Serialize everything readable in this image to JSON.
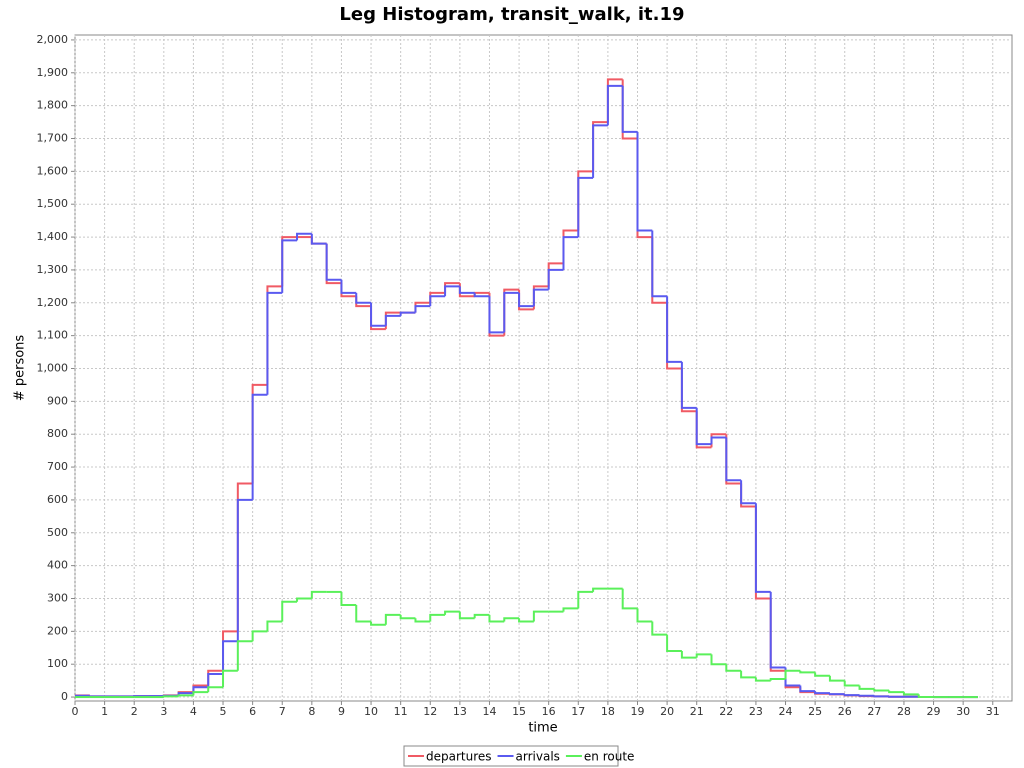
{
  "chart_data": {
    "type": "line",
    "title": "Leg Histogram, transit_walk, it.19",
    "xlabel": "time",
    "ylabel": "# persons",
    "x": [
      0,
      0.5,
      1,
      1.5,
      2,
      2.5,
      3,
      3.5,
      4,
      4.5,
      5,
      5.5,
      6,
      6.5,
      7,
      7.5,
      8,
      8.5,
      9,
      9.5,
      10,
      10.5,
      11,
      11.5,
      12,
      12.5,
      13,
      13.5,
      14,
      14.5,
      15,
      15.5,
      16,
      16.5,
      17,
      17.5,
      18,
      18.5,
      19,
      19.5,
      20,
      20.5,
      21,
      21.5,
      22,
      22.5,
      23,
      23.5,
      24,
      24.5,
      25,
      25.5,
      26,
      26.5,
      27,
      27.5,
      28,
      28.5,
      29,
      29.5,
      30
    ],
    "series": [
      {
        "name": "departures",
        "color": "#f05a64",
        "values": [
          5,
          2,
          2,
          2,
          3,
          3,
          5,
          15,
          35,
          80,
          200,
          650,
          950,
          1250,
          1400,
          1400,
          1380,
          1260,
          1220,
          1190,
          1120,
          1170,
          1170,
          1200,
          1230,
          1260,
          1220,
          1230,
          1100,
          1240,
          1180,
          1250,
          1320,
          1420,
          1600,
          1750,
          1880,
          1700,
          1400,
          1200,
          1000,
          870,
          760,
          800,
          650,
          580,
          300,
          80,
          30,
          15,
          10,
          8,
          5,
          3,
          2,
          1,
          1,
          0,
          0,
          0,
          0
        ]
      },
      {
        "name": "arrivals",
        "color": "#5a5af0",
        "values": [
          4,
          2,
          2,
          2,
          3,
          3,
          4,
          12,
          30,
          70,
          170,
          600,
          920,
          1230,
          1390,
          1410,
          1380,
          1270,
          1230,
          1200,
          1130,
          1160,
          1170,
          1190,
          1220,
          1250,
          1230,
          1220,
          1110,
          1230,
          1190,
          1240,
          1300,
          1400,
          1580,
          1740,
          1860,
          1720,
          1420,
          1220,
          1020,
          880,
          770,
          790,
          660,
          590,
          320,
          90,
          35,
          18,
          12,
          9,
          6,
          4,
          2,
          1,
          1,
          0,
          0,
          0,
          0
        ]
      },
      {
        "name": "en route",
        "color": "#5af05a",
        "values": [
          0,
          0,
          0,
          0,
          0,
          0,
          2,
          5,
          15,
          30,
          80,
          170,
          200,
          230,
          290,
          300,
          320,
          320,
          280,
          230,
          220,
          250,
          240,
          230,
          250,
          260,
          240,
          250,
          230,
          240,
          230,
          260,
          260,
          270,
          320,
          330,
          330,
          270,
          230,
          190,
          140,
          120,
          130,
          100,
          80,
          60,
          50,
          55,
          80,
          75,
          65,
          50,
          35,
          25,
          20,
          15,
          8,
          0,
          0,
          0,
          0
        ]
      }
    ],
    "xlim": [
      0,
      31.65
    ],
    "ylim": [
      -12,
      2015
    ],
    "xticks": [
      0,
      1,
      2,
      3,
      4,
      5,
      6,
      7,
      8,
      9,
      10,
      11,
      12,
      13,
      14,
      15,
      16,
      17,
      18,
      19,
      20,
      21,
      22,
      23,
      24,
      25,
      26,
      27,
      28,
      29,
      30,
      31
    ],
    "yticks": [
      0,
      100,
      200,
      300,
      400,
      500,
      600,
      700,
      800,
      900,
      {
        "value": 1000,
        "label": "1,000"
      },
      {
        "value": 1100,
        "label": "1,100"
      },
      {
        "value": 1200,
        "label": "1,200"
      },
      {
        "value": 1300,
        "label": "1,300"
      },
      {
        "value": 1400,
        "label": "1,400"
      },
      {
        "value": 1500,
        "label": "1,500"
      },
      {
        "value": 1600,
        "label": "1,600"
      },
      {
        "value": 1700,
        "label": "1,700"
      },
      {
        "value": 1800,
        "label": "1,800"
      },
      {
        "value": 1900,
        "label": "1,900"
      },
      {
        "value": 2000,
        "label": "2,000"
      }
    ],
    "grid": true,
    "legend": "bottom"
  }
}
